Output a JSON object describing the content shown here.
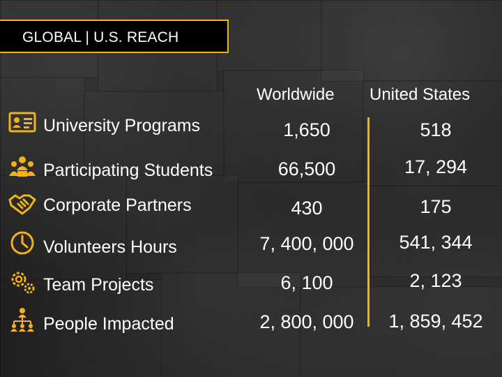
{
  "title": "GLOBAL | U.S. REACH",
  "columns": {
    "worldwide": "Worldwide",
    "united_states": "United States"
  },
  "accent_color": "#f2b21b",
  "rows": [
    {
      "label": "University  Programs",
      "icon": "id-card-icon",
      "worldwide": "1,650",
      "us": "518"
    },
    {
      "label": "Participating Students",
      "icon": "group-people-icon",
      "worldwide": "66,500",
      "us": "17, 294"
    },
    {
      "label": "Corporate Partners",
      "icon": "handshake-icon",
      "worldwide": "430",
      "us": "175"
    },
    {
      "label": "Volunteers Hours",
      "icon": "clock-icon",
      "worldwide": "7, 400, 000",
      "us": "541, 344"
    },
    {
      "label": "Team Projects",
      "icon": "gears-icon",
      "worldwide": "6, 100",
      "us": "2, 123"
    },
    {
      "label": "People Impacted",
      "icon": "network-people-icon",
      "worldwide": "2, 800, 000",
      "us": "1, 859, 452"
    }
  ]
}
